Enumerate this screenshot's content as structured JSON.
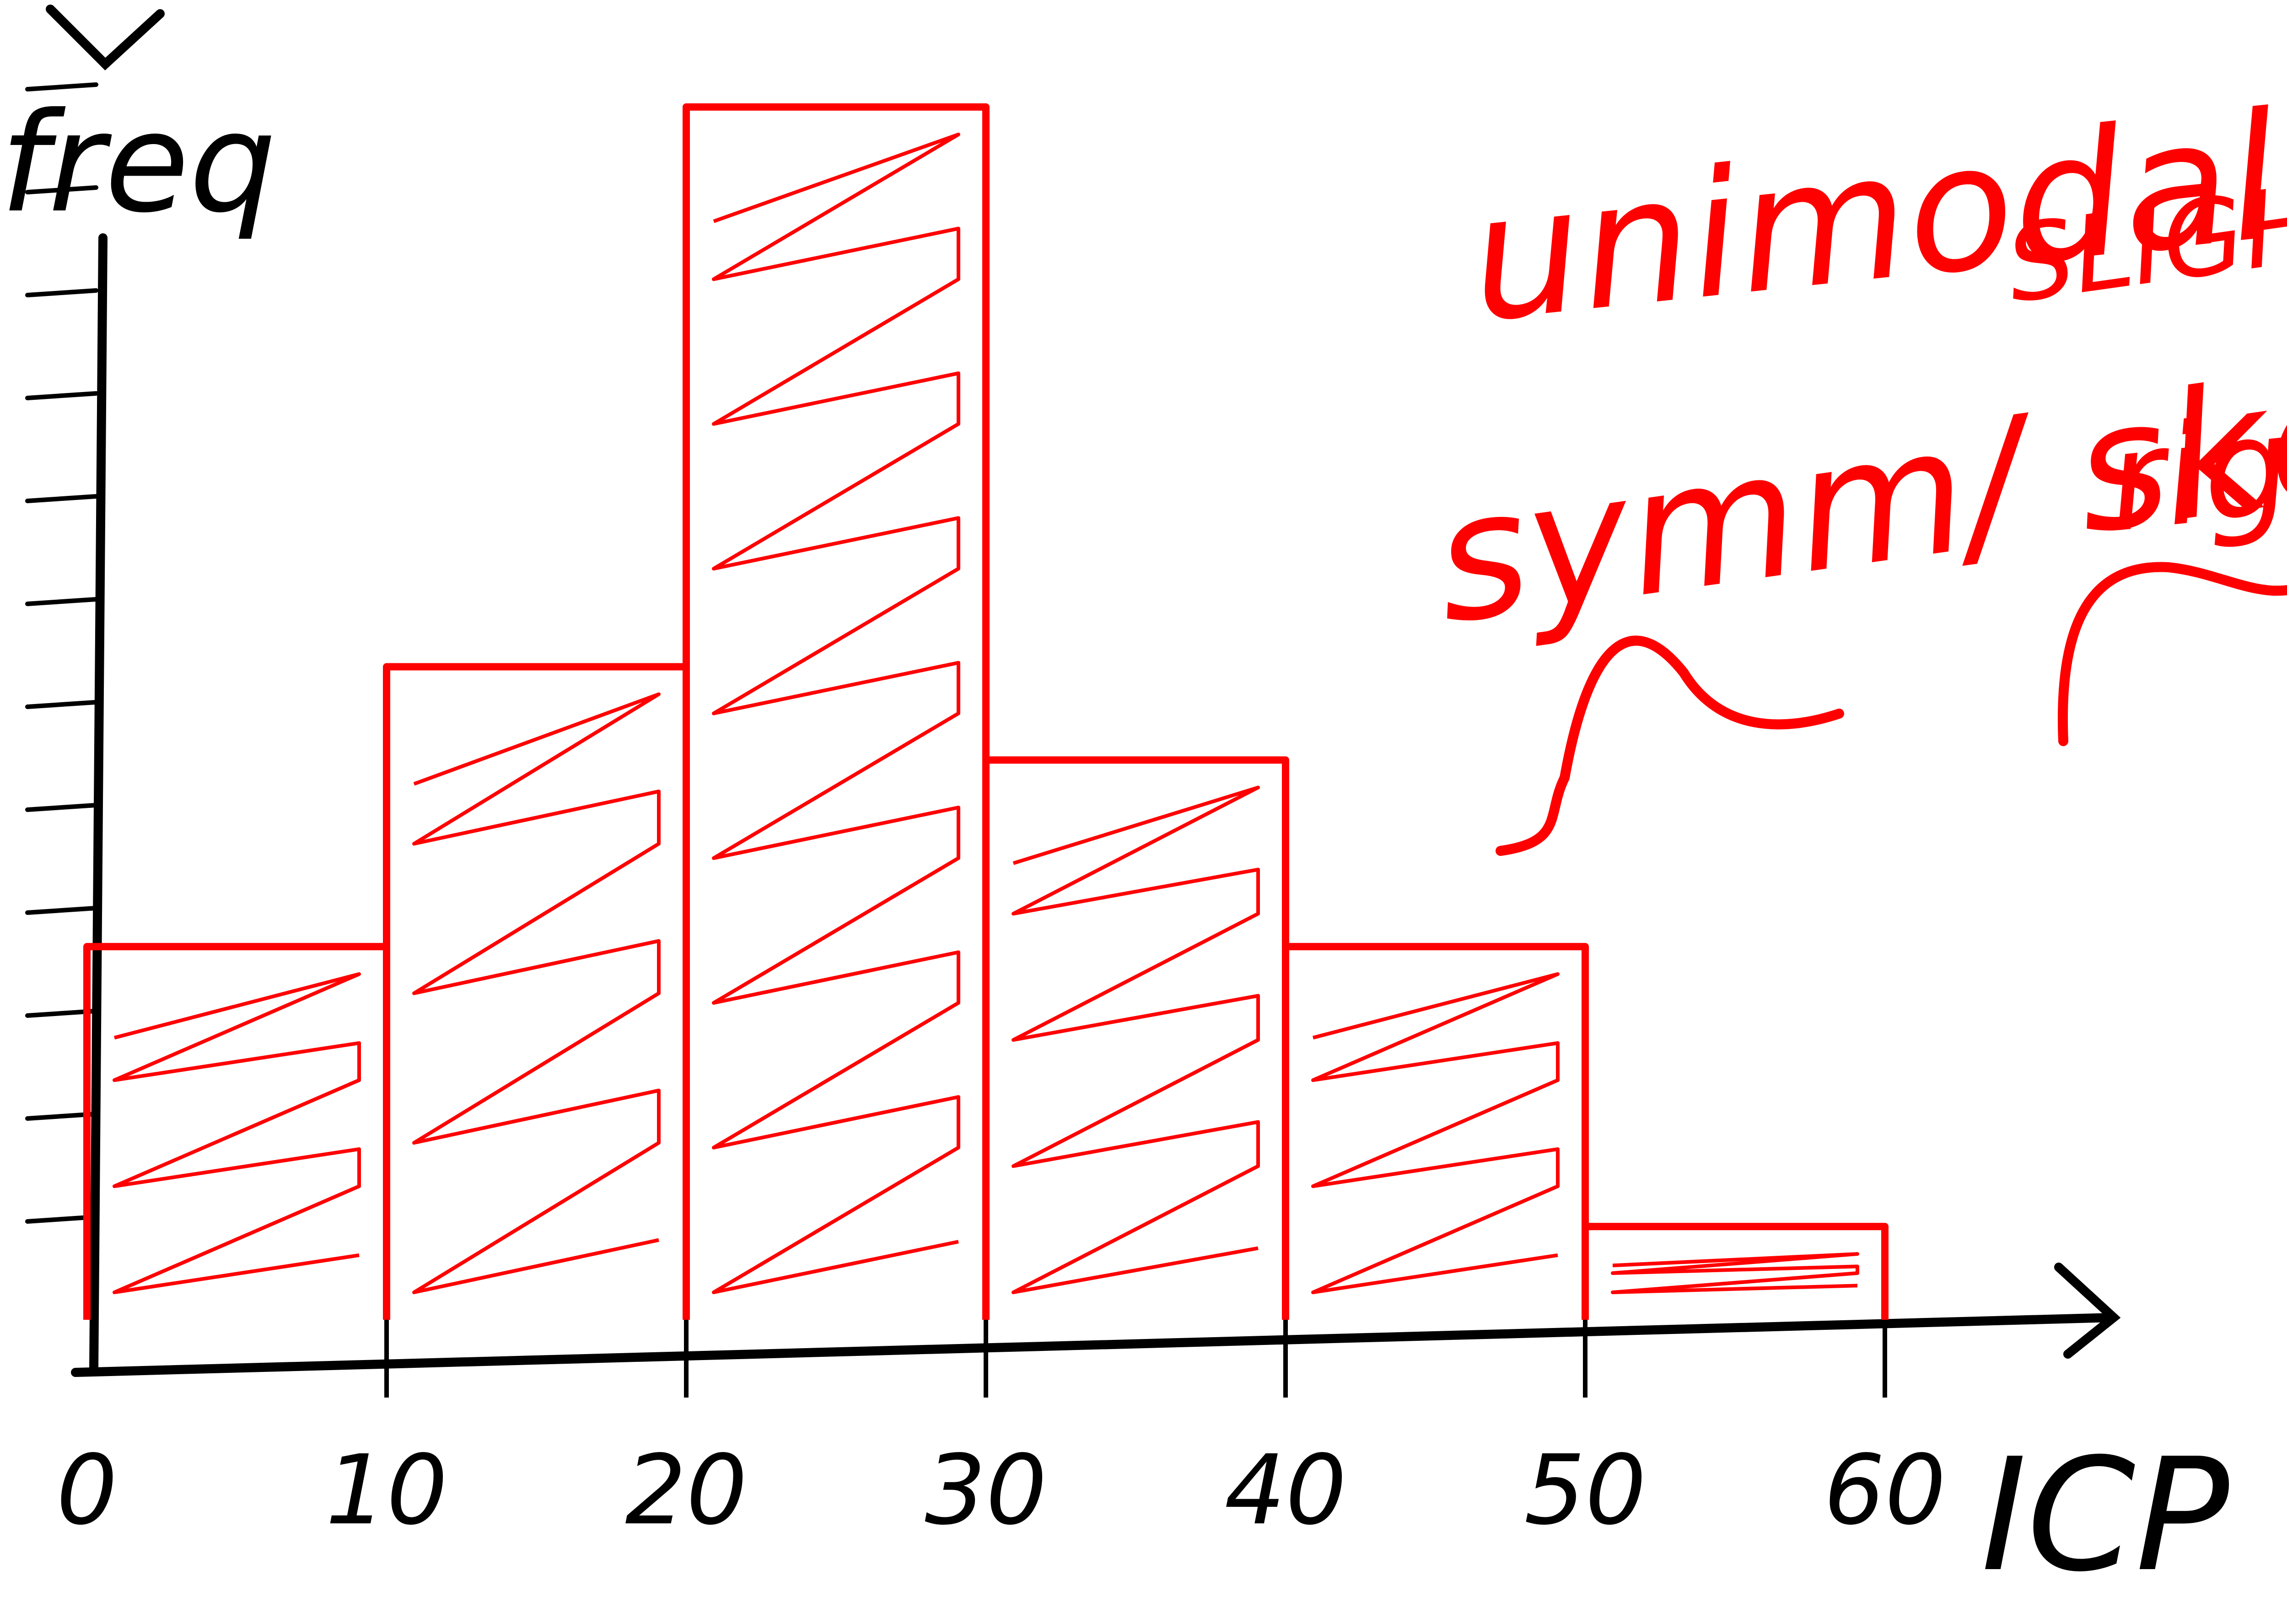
{
  "chart_data": {
    "type": "bar",
    "title": "",
    "xlabel": "",
    "ylabel": "",
    "bin_edges": [
      0,
      10,
      20,
      30,
      40,
      50,
      60
    ],
    "x_tick_labels": [
      "0",
      "10",
      "20",
      "30",
      "40",
      "50",
      "60"
    ],
    "values": [
      4,
      7,
      13,
      6,
      4,
      1
    ],
    "ylim": [
      0,
      14
    ],
    "y_tick_count": 12,
    "grid": false,
    "colors": {
      "bars": "#ff0000",
      "hatch": "#ff0000",
      "axes": "#000000"
    },
    "annotations": {
      "line1": "unimodal",
      "line2": "symm/ skewed",
      "line3": "SLIGHTLY",
      "line4": "right"
    },
    "y_axis_label_partial": "freq",
    "x_axis_label_partial": "ICP"
  }
}
